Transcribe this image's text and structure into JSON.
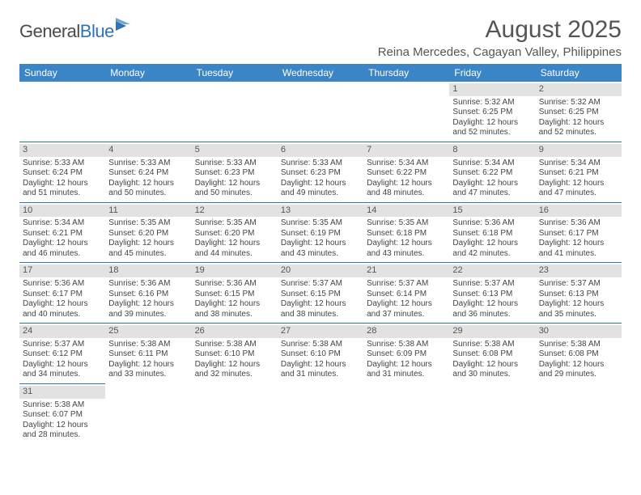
{
  "logo": {
    "part1": "General",
    "part2": "Blue"
  },
  "title": "August 2025",
  "location": "Reina Mercedes, Cagayan Valley, Philippines",
  "colors": {
    "header_bg": "#3b85c6",
    "header_text": "#ffffff",
    "daynum_bg": "#e2e2e2",
    "border": "#2f73b5",
    "logo_blue": "#2f73b5",
    "text": "#444444"
  },
  "weekdays": [
    "Sunday",
    "Monday",
    "Tuesday",
    "Wednesday",
    "Thursday",
    "Friday",
    "Saturday"
  ],
  "weeks": [
    [
      null,
      null,
      null,
      null,
      null,
      {
        "n": "1",
        "sunrise": "Sunrise: 5:32 AM",
        "sunset": "Sunset: 6:25 PM",
        "day1": "Daylight: 12 hours",
        "day2": "and 52 minutes."
      },
      {
        "n": "2",
        "sunrise": "Sunrise: 5:32 AM",
        "sunset": "Sunset: 6:25 PM",
        "day1": "Daylight: 12 hours",
        "day2": "and 52 minutes."
      }
    ],
    [
      {
        "n": "3",
        "sunrise": "Sunrise: 5:33 AM",
        "sunset": "Sunset: 6:24 PM",
        "day1": "Daylight: 12 hours",
        "day2": "and 51 minutes."
      },
      {
        "n": "4",
        "sunrise": "Sunrise: 5:33 AM",
        "sunset": "Sunset: 6:24 PM",
        "day1": "Daylight: 12 hours",
        "day2": "and 50 minutes."
      },
      {
        "n": "5",
        "sunrise": "Sunrise: 5:33 AM",
        "sunset": "Sunset: 6:23 PM",
        "day1": "Daylight: 12 hours",
        "day2": "and 50 minutes."
      },
      {
        "n": "6",
        "sunrise": "Sunrise: 5:33 AM",
        "sunset": "Sunset: 6:23 PM",
        "day1": "Daylight: 12 hours",
        "day2": "and 49 minutes."
      },
      {
        "n": "7",
        "sunrise": "Sunrise: 5:34 AM",
        "sunset": "Sunset: 6:22 PM",
        "day1": "Daylight: 12 hours",
        "day2": "and 48 minutes."
      },
      {
        "n": "8",
        "sunrise": "Sunrise: 5:34 AM",
        "sunset": "Sunset: 6:22 PM",
        "day1": "Daylight: 12 hours",
        "day2": "and 47 minutes."
      },
      {
        "n": "9",
        "sunrise": "Sunrise: 5:34 AM",
        "sunset": "Sunset: 6:21 PM",
        "day1": "Daylight: 12 hours",
        "day2": "and 47 minutes."
      }
    ],
    [
      {
        "n": "10",
        "sunrise": "Sunrise: 5:34 AM",
        "sunset": "Sunset: 6:21 PM",
        "day1": "Daylight: 12 hours",
        "day2": "and 46 minutes."
      },
      {
        "n": "11",
        "sunrise": "Sunrise: 5:35 AM",
        "sunset": "Sunset: 6:20 PM",
        "day1": "Daylight: 12 hours",
        "day2": "and 45 minutes."
      },
      {
        "n": "12",
        "sunrise": "Sunrise: 5:35 AM",
        "sunset": "Sunset: 6:20 PM",
        "day1": "Daylight: 12 hours",
        "day2": "and 44 minutes."
      },
      {
        "n": "13",
        "sunrise": "Sunrise: 5:35 AM",
        "sunset": "Sunset: 6:19 PM",
        "day1": "Daylight: 12 hours",
        "day2": "and 43 minutes."
      },
      {
        "n": "14",
        "sunrise": "Sunrise: 5:35 AM",
        "sunset": "Sunset: 6:18 PM",
        "day1": "Daylight: 12 hours",
        "day2": "and 43 minutes."
      },
      {
        "n": "15",
        "sunrise": "Sunrise: 5:36 AM",
        "sunset": "Sunset: 6:18 PM",
        "day1": "Daylight: 12 hours",
        "day2": "and 42 minutes."
      },
      {
        "n": "16",
        "sunrise": "Sunrise: 5:36 AM",
        "sunset": "Sunset: 6:17 PM",
        "day1": "Daylight: 12 hours",
        "day2": "and 41 minutes."
      }
    ],
    [
      {
        "n": "17",
        "sunrise": "Sunrise: 5:36 AM",
        "sunset": "Sunset: 6:17 PM",
        "day1": "Daylight: 12 hours",
        "day2": "and 40 minutes."
      },
      {
        "n": "18",
        "sunrise": "Sunrise: 5:36 AM",
        "sunset": "Sunset: 6:16 PM",
        "day1": "Daylight: 12 hours",
        "day2": "and 39 minutes."
      },
      {
        "n": "19",
        "sunrise": "Sunrise: 5:36 AM",
        "sunset": "Sunset: 6:15 PM",
        "day1": "Daylight: 12 hours",
        "day2": "and 38 minutes."
      },
      {
        "n": "20",
        "sunrise": "Sunrise: 5:37 AM",
        "sunset": "Sunset: 6:15 PM",
        "day1": "Daylight: 12 hours",
        "day2": "and 38 minutes."
      },
      {
        "n": "21",
        "sunrise": "Sunrise: 5:37 AM",
        "sunset": "Sunset: 6:14 PM",
        "day1": "Daylight: 12 hours",
        "day2": "and 37 minutes."
      },
      {
        "n": "22",
        "sunrise": "Sunrise: 5:37 AM",
        "sunset": "Sunset: 6:13 PM",
        "day1": "Daylight: 12 hours",
        "day2": "and 36 minutes."
      },
      {
        "n": "23",
        "sunrise": "Sunrise: 5:37 AM",
        "sunset": "Sunset: 6:13 PM",
        "day1": "Daylight: 12 hours",
        "day2": "and 35 minutes."
      }
    ],
    [
      {
        "n": "24",
        "sunrise": "Sunrise: 5:37 AM",
        "sunset": "Sunset: 6:12 PM",
        "day1": "Daylight: 12 hours",
        "day2": "and 34 minutes."
      },
      {
        "n": "25",
        "sunrise": "Sunrise: 5:38 AM",
        "sunset": "Sunset: 6:11 PM",
        "day1": "Daylight: 12 hours",
        "day2": "and 33 minutes."
      },
      {
        "n": "26",
        "sunrise": "Sunrise: 5:38 AM",
        "sunset": "Sunset: 6:10 PM",
        "day1": "Daylight: 12 hours",
        "day2": "and 32 minutes."
      },
      {
        "n": "27",
        "sunrise": "Sunrise: 5:38 AM",
        "sunset": "Sunset: 6:10 PM",
        "day1": "Daylight: 12 hours",
        "day2": "and 31 minutes."
      },
      {
        "n": "28",
        "sunrise": "Sunrise: 5:38 AM",
        "sunset": "Sunset: 6:09 PM",
        "day1": "Daylight: 12 hours",
        "day2": "and 31 minutes."
      },
      {
        "n": "29",
        "sunrise": "Sunrise: 5:38 AM",
        "sunset": "Sunset: 6:08 PM",
        "day1": "Daylight: 12 hours",
        "day2": "and 30 minutes."
      },
      {
        "n": "30",
        "sunrise": "Sunrise: 5:38 AM",
        "sunset": "Sunset: 6:08 PM",
        "day1": "Daylight: 12 hours",
        "day2": "and 29 minutes."
      }
    ],
    [
      {
        "n": "31",
        "sunrise": "Sunrise: 5:38 AM",
        "sunset": "Sunset: 6:07 PM",
        "day1": "Daylight: 12 hours",
        "day2": "and 28 minutes."
      },
      null,
      null,
      null,
      null,
      null,
      null
    ]
  ]
}
